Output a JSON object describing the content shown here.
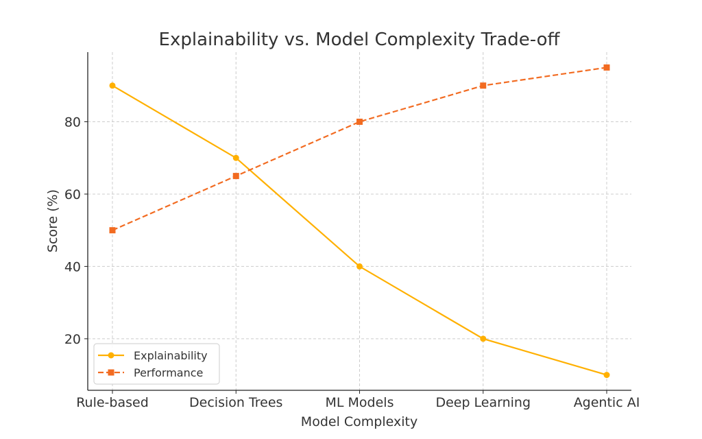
{
  "chart_data": {
    "type": "line",
    "title": "Explainability vs. Model Complexity Trade-off",
    "xlabel": "Model Complexity",
    "ylabel": "Score (%)",
    "categories": [
      "Rule-based",
      "Decision Trees",
      "ML Models",
      "Deep Learning",
      "Agentic AI"
    ],
    "series": [
      {
        "name": "Explainability",
        "values": [
          90,
          70,
          40,
          20,
          10
        ],
        "color": "#FFB000",
        "linestyle": "solid",
        "marker": "circle"
      },
      {
        "name": "Performance",
        "values": [
          50,
          65,
          80,
          90,
          95
        ],
        "color": "#F26B21",
        "linestyle": "dashed",
        "marker": "square"
      }
    ],
    "ylim": [
      5.75,
      99.25
    ],
    "yticks": [
      20,
      40,
      60,
      80
    ],
    "grid": true,
    "legend_position": "lower-left"
  }
}
